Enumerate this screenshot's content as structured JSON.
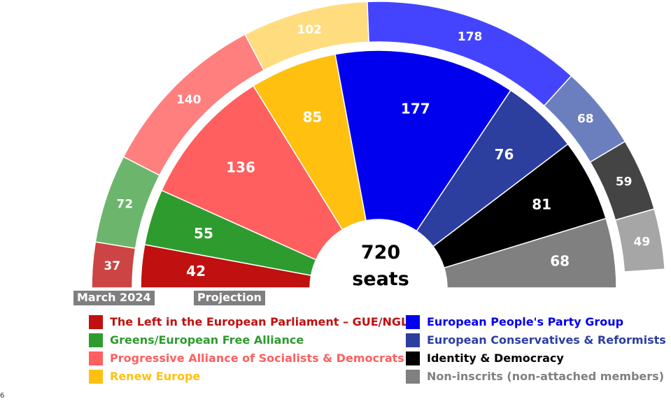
{
  "chart_data": {
    "type": "parliament-donut",
    "total_seats": 720,
    "center_label": {
      "value": "720",
      "unit": "seats"
    },
    "series": [
      {
        "name": "March 2024",
        "ring": "outer",
        "values": [
          {
            "group": "left",
            "value": 37,
            "color": "#cc4444"
          },
          {
            "group": "greens",
            "value": 72,
            "color": "#6cb56c"
          },
          {
            "group": "sd",
            "value": 140,
            "color": "#ff7f7f"
          },
          {
            "group": "renew",
            "value": 102,
            "color": "#ffdd7f"
          },
          {
            "group": "epp",
            "value": 178,
            "color": "#4444ff"
          },
          {
            "group": "ecr",
            "value": 68,
            "color": "#6b7fbf"
          },
          {
            "group": "id",
            "value": 59,
            "color": "#444444"
          },
          {
            "group": "ni",
            "value": 49,
            "color": "#a6a6a6"
          }
        ]
      },
      {
        "name": "Projection",
        "ring": "inner",
        "values": [
          {
            "group": "left",
            "value": 42,
            "color": "#c01010"
          },
          {
            "group": "greens",
            "value": 55,
            "color": "#2e9b2e"
          },
          {
            "group": "sd",
            "value": 136,
            "color": "#ff5f5f"
          },
          {
            "group": "renew",
            "value": 85,
            "color": "#ffc010"
          },
          {
            "group": "epp",
            "value": 177,
            "color": "#0000ee"
          },
          {
            "group": "ecr",
            "value": 76,
            "color": "#2c3f9f"
          },
          {
            "group": "id",
            "value": 81,
            "color": "#000000"
          },
          {
            "group": "ni",
            "value": 68,
            "color": "#808080"
          }
        ]
      }
    ],
    "ring_labels": {
      "outer": "March 2024",
      "inner": "Projection"
    },
    "legend": [
      {
        "group": "left",
        "label": "The Left in the European Parliament – GUE/NGL",
        "color": "#c01010"
      },
      {
        "group": "greens",
        "label": "Greens/European Free Alliance",
        "color": "#2e9b2e"
      },
      {
        "group": "sd",
        "label": "Progressive Alliance of Socialists & Democrats",
        "color": "#ff5f5f"
      },
      {
        "group": "renew",
        "label": "Renew Europe",
        "color": "#ffc010"
      },
      {
        "group": "epp",
        "label": "European People's Party Group",
        "color": "#0000ee"
      },
      {
        "group": "ecr",
        "label": "European Conservatives & Reformists",
        "color": "#2c3f9f"
      },
      {
        "group": "id",
        "label": "Identity & Democracy",
        "color": "#000000"
      },
      {
        "group": "ni",
        "label": "Non-inscrits (non-attached members)",
        "color": "#808080"
      }
    ]
  },
  "page_number": "6"
}
